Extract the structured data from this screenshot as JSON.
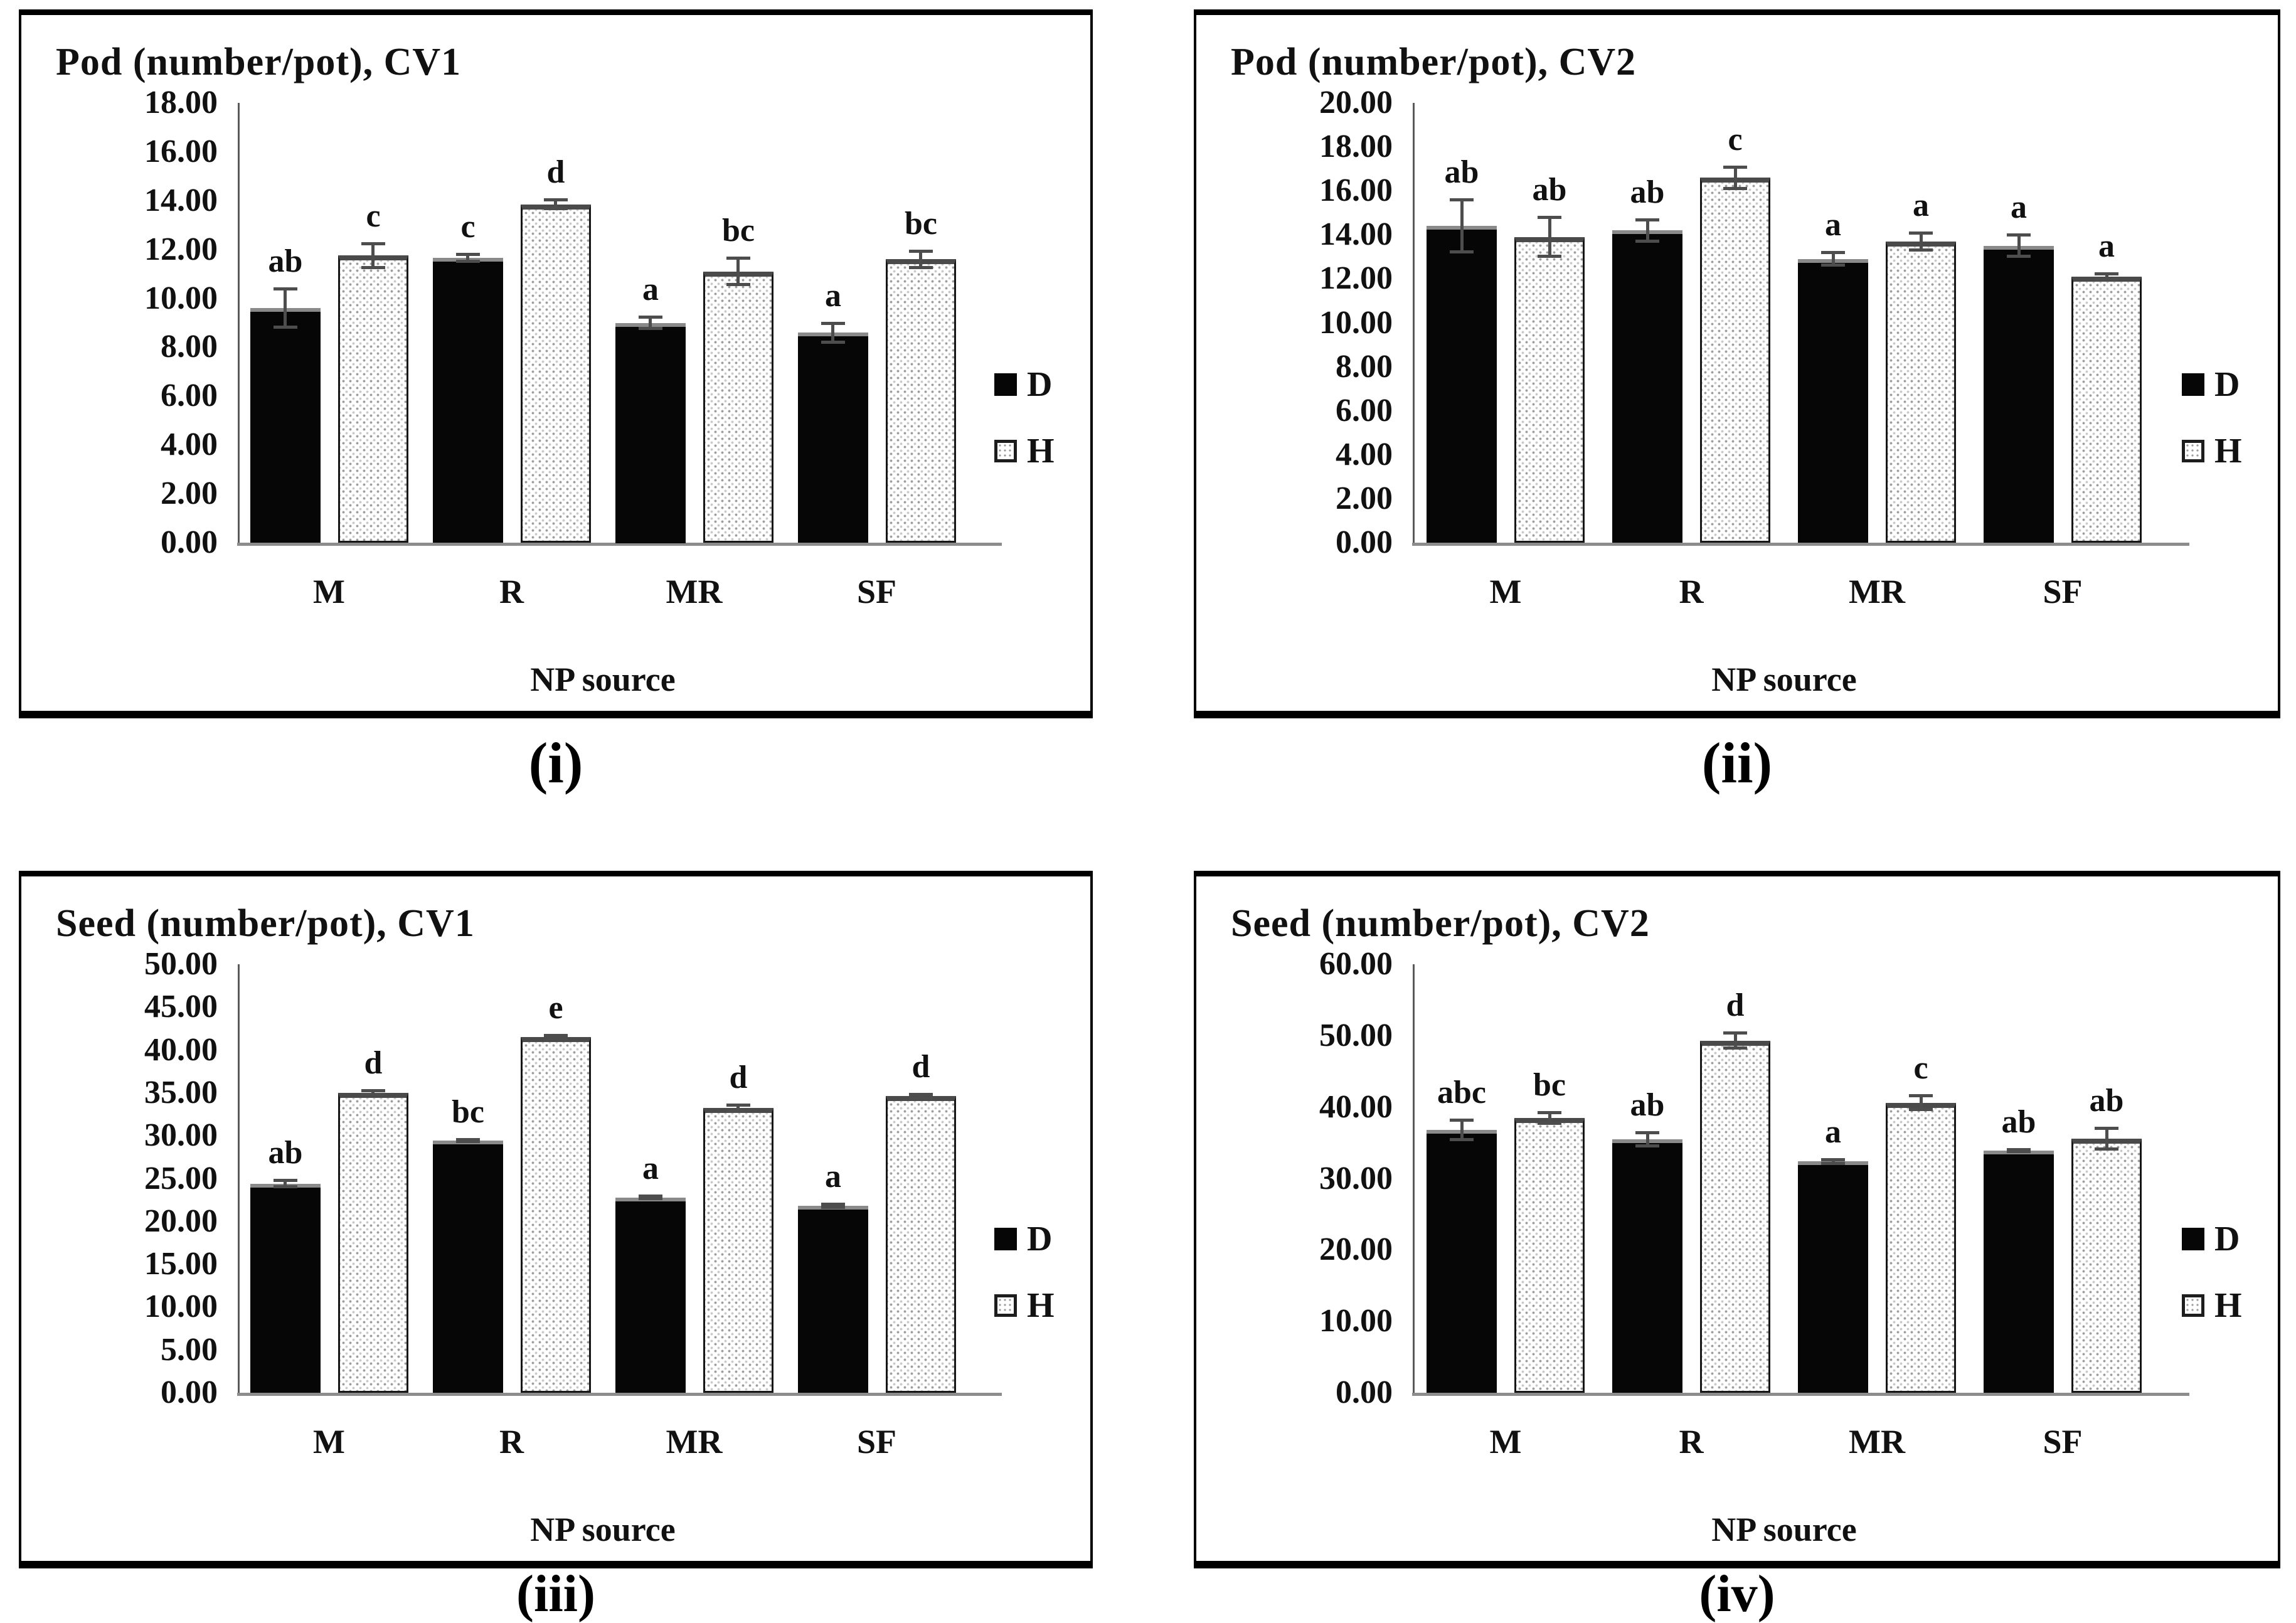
{
  "figure": {
    "description": "Four grouped bar chart panels comparing D and H treatments across NP sources",
    "legend_labels": [
      "D",
      "H"
    ]
  },
  "chart_data": [
    {
      "type": "bar",
      "title": "Pod (number/pot), CV1",
      "caption": "(i)",
      "xlabel": "NP source",
      "ylabel": "",
      "categories": [
        "M",
        "R",
        "MR",
        "SF"
      ],
      "ylim": [
        0,
        18
      ],
      "ytick_step": 2,
      "yticks": [
        "0.00",
        "2.00",
        "4.00",
        "6.00",
        "8.00",
        "10.00",
        "12.00",
        "14.00",
        "16.00",
        "18.00"
      ],
      "grid": false,
      "legend_position": "right",
      "series": [
        {
          "name": "D",
          "fill": "solid-black",
          "values": [
            9.6,
            11.65,
            9.0,
            8.6
          ],
          "errors": [
            0.8,
            0.15,
            0.25,
            0.4
          ],
          "sig_letters": [
            "ab",
            "c",
            "a",
            "a"
          ]
        },
        {
          "name": "H",
          "fill": "dotted-white",
          "values": [
            11.75,
            13.85,
            11.1,
            11.6
          ],
          "errors": [
            0.5,
            0.2,
            0.55,
            0.35
          ],
          "sig_letters": [
            "c",
            "d",
            "bc",
            "bc"
          ]
        }
      ]
    },
    {
      "type": "bar",
      "title": "Pod (number/pot), CV2",
      "caption": "(ii)",
      "xlabel": "NP source",
      "ylabel": "",
      "categories": [
        "M",
        "R",
        "MR",
        "SF"
      ],
      "ylim": [
        0,
        20
      ],
      "ytick_step": 2,
      "yticks": [
        "0.00",
        "2.00",
        "4.00",
        "6.00",
        "8.00",
        "10.00",
        "12.00",
        "14.00",
        "16.00",
        "18.00",
        "20.00"
      ],
      "grid": false,
      "legend_position": "right",
      "series": [
        {
          "name": "D",
          "fill": "solid-black",
          "values": [
            14.4,
            14.2,
            12.9,
            13.5
          ],
          "errors": [
            1.2,
            0.5,
            0.3,
            0.5
          ],
          "sig_letters": [
            "ab",
            "ab",
            "a",
            "a"
          ]
        },
        {
          "name": "H",
          "fill": "dotted-white",
          "values": [
            13.9,
            16.6,
            13.7,
            12.1
          ],
          "errors": [
            0.9,
            0.5,
            0.4,
            0.15
          ],
          "sig_letters": [
            "ab",
            "c",
            "a",
            "a"
          ]
        }
      ]
    },
    {
      "type": "bar",
      "title": "Seed (number/pot), CV1",
      "caption": "(iii)",
      "xlabel": "NP source",
      "ylabel": "",
      "categories": [
        "M",
        "R",
        "MR",
        "SF"
      ],
      "ylim": [
        0,
        50
      ],
      "ytick_step": 5,
      "yticks": [
        "0.00",
        "5.00",
        "10.00",
        "15.00",
        "20.00",
        "25.00",
        "30.00",
        "35.00",
        "40.00",
        "45.00",
        "50.00"
      ],
      "grid": false,
      "legend_position": "right",
      "series": [
        {
          "name": "D",
          "fill": "solid-black",
          "values": [
            24.4,
            29.4,
            22.8,
            21.8
          ],
          "errors": [
            0.4,
            0.15,
            0.2,
            0.2
          ],
          "sig_letters": [
            "ab",
            "bc",
            "a",
            "a"
          ]
        },
        {
          "name": "H",
          "fill": "dotted-white",
          "values": [
            35.0,
            41.5,
            33.2,
            34.6
          ],
          "errors": [
            0.25,
            0.2,
            0.4,
            0.25
          ],
          "sig_letters": [
            "d",
            "e",
            "d",
            "d"
          ]
        }
      ]
    },
    {
      "type": "bar",
      "title": "Seed (number/pot), CV2",
      "caption": "(iv)",
      "xlabel": "NP source",
      "ylabel": "",
      "categories": [
        "M",
        "R",
        "MR",
        "SF"
      ],
      "ylim": [
        0,
        60
      ],
      "ytick_step": 10,
      "yticks": [
        "0.00",
        "10.00",
        "20.00",
        "30.00",
        "40.00",
        "50.00",
        "60.00"
      ],
      "grid": false,
      "legend_position": "right",
      "series": [
        {
          "name": "D",
          "fill": "solid-black",
          "values": [
            36.8,
            35.5,
            32.4,
            33.9
          ],
          "errors": [
            1.4,
            1.0,
            0.3,
            0.2
          ],
          "sig_letters": [
            "abc",
            "ab",
            "a",
            "ab"
          ]
        },
        {
          "name": "H",
          "fill": "dotted-white",
          "values": [
            38.5,
            49.3,
            40.6,
            35.6
          ],
          "errors": [
            0.8,
            1.1,
            1.0,
            1.5
          ],
          "sig_letters": [
            "bc",
            "d",
            "c",
            "ab"
          ]
        }
      ]
    }
  ]
}
